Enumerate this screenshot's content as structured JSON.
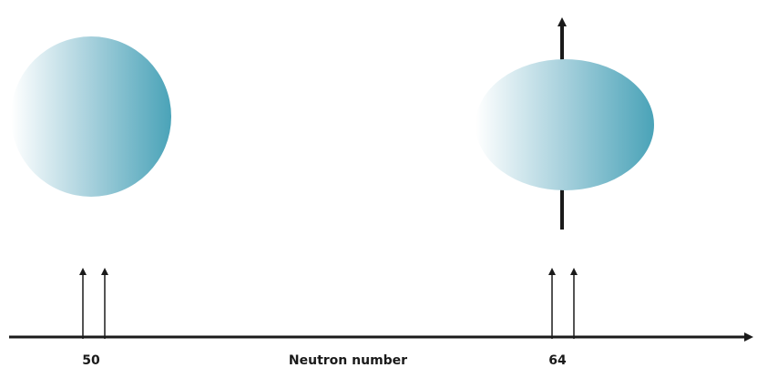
{
  "axis": {
    "label": "Neutron number",
    "ticks": [
      "50",
      "64"
    ]
  }
}
